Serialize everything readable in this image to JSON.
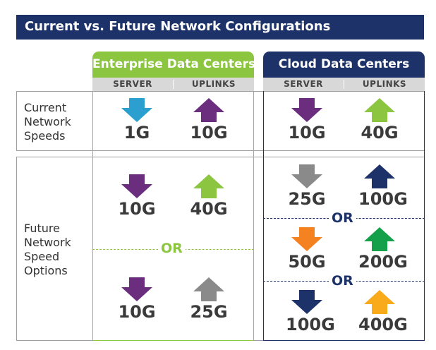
{
  "title": "Current vs. Future Network Configurations",
  "columns": {
    "enterprise": {
      "label": "Enterprise Data Centers",
      "server": "SERVER",
      "uplinks": "UPLINKS"
    },
    "cloud": {
      "label": "Cloud Data Centers",
      "server": "SERVER",
      "uplinks": "UPLINKS"
    }
  },
  "rows": {
    "current": {
      "label": [
        "Current",
        "Network",
        "Speeds"
      ]
    },
    "future": {
      "label": [
        "Future",
        "Network",
        "Speed",
        "Options"
      ]
    }
  },
  "or_label": "OR",
  "colors": {
    "navy": "#1d3269",
    "green": "#8cc540",
    "purple": "#6b2d7e",
    "teal": "#2a9fd0",
    "gray": "#8a8a8a",
    "orange": "#f58220",
    "dark_green": "#14a04a",
    "yellow": "#f8aa1b"
  },
  "cells": {
    "ent_cur_server": {
      "value": "1G",
      "arrow": "down",
      "color": "#2a9fd0"
    },
    "ent_cur_uplink": {
      "value": "10G",
      "arrow": "up",
      "color": "#6b2d7e"
    },
    "cld_cur_server": {
      "value": "10G",
      "arrow": "down",
      "color": "#6b2d7e"
    },
    "cld_cur_uplink": {
      "value": "40G",
      "arrow": "up",
      "color": "#8cc540"
    },
    "ent_fut1_server": {
      "value": "10G",
      "arrow": "down",
      "color": "#6b2d7e"
    },
    "ent_fut1_uplink": {
      "value": "40G",
      "arrow": "up",
      "color": "#8cc540"
    },
    "ent_fut2_server": {
      "value": "10G",
      "arrow": "down",
      "color": "#6b2d7e"
    },
    "ent_fut2_uplink": {
      "value": "25G",
      "arrow": "up",
      "color": "#8a8a8a"
    },
    "cld_fut1_server": {
      "value": "25G",
      "arrow": "down",
      "color": "#8a8a8a"
    },
    "cld_fut1_uplink": {
      "value": "100G",
      "arrow": "up",
      "color": "#1d3269"
    },
    "cld_fut2_server": {
      "value": "50G",
      "arrow": "down",
      "color": "#f58220"
    },
    "cld_fut2_uplink": {
      "value": "200G",
      "arrow": "up",
      "color": "#14a04a"
    },
    "cld_fut3_server": {
      "value": "100G",
      "arrow": "down",
      "color": "#1d3269"
    },
    "cld_fut3_uplink": {
      "value": "400G",
      "arrow": "up",
      "color": "#f8aa1b"
    }
  }
}
